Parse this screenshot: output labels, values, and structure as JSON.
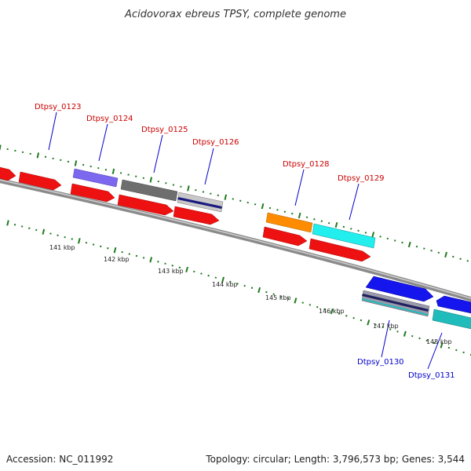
{
  "title": "Acidovorax ebreus TPSY, complete genome",
  "footer": {
    "accession": "Accession: NC_011992",
    "topology": "Topology: circular; Length: 3,796,573 bp; Genes: 3,544"
  },
  "colors": {
    "backbone": "#8c8c8c",
    "tick": "#1f7a1f",
    "label_top": "#cc0000",
    "label_bottom": "#0000cc"
  },
  "kbp_labels": [
    "141 kbp",
    "142 kbp",
    "143 kbp",
    "144 kbp",
    "145 kbp",
    "146 kbp",
    "147 kbp",
    "148 kbp"
  ],
  "gene_labels": [
    {
      "id": "Dtpsy_0123",
      "strand": "top"
    },
    {
      "id": "Dtpsy_0124",
      "strand": "top"
    },
    {
      "id": "Dtpsy_0125",
      "strand": "top"
    },
    {
      "id": "Dtpsy_0126",
      "strand": "top"
    },
    {
      "id": "Dtpsy_0128",
      "strand": "top"
    },
    {
      "id": "Dtpsy_0129",
      "strand": "top"
    },
    {
      "id": "Dtpsy_0130",
      "strand": "bottom"
    },
    {
      "id": "Dtpsy_0131",
      "strand": "bottom"
    }
  ],
  "feature_colors": {
    "cds": "#ee1111",
    "blue_violet": "#7b68ee",
    "dim_gray": "#6e6e6e",
    "silver": "#c8c8c8",
    "navy": "#1a1a80",
    "orange": "#ff8c00",
    "cyan": "#22eeee",
    "blue": "#1515ee",
    "teal": "#20bbbb"
  }
}
